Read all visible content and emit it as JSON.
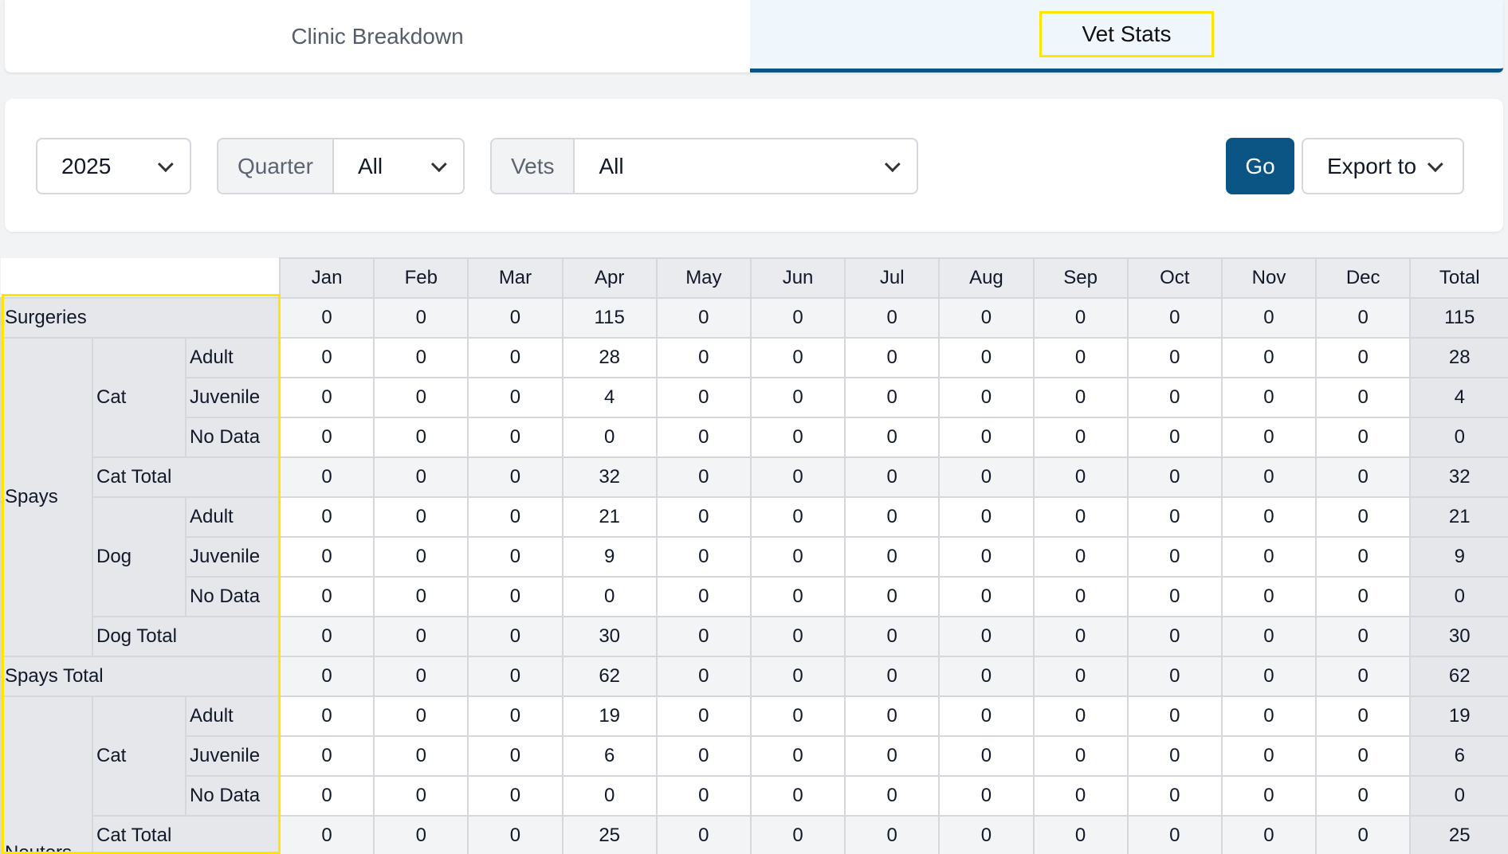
{
  "tabs": [
    {
      "label": "Clinic Breakdown",
      "active": false
    },
    {
      "label": "Vet Stats",
      "active": true
    }
  ],
  "filters": {
    "year": "2025",
    "quarter_label": "Quarter",
    "quarter_value": "All",
    "vets_label": "Vets",
    "vets_value": "All",
    "go_label": "Go",
    "export_label": "Export to"
  },
  "colors": {
    "accent": "#0b5585",
    "highlight": "#ffe600"
  },
  "table": {
    "columns": [
      "Jan",
      "Feb",
      "Mar",
      "Apr",
      "May",
      "Jun",
      "Jul",
      "Aug",
      "Sep",
      "Oct",
      "Nov",
      "Dec",
      "Total"
    ],
    "groups": {
      "surgeries": "Surgeries",
      "spays": "Spays",
      "spays_total": "Spays Total",
      "neuters": "Neuters"
    },
    "rows": [
      {
        "key": "surgeries",
        "l1": "Surgeries",
        "values": [
          0,
          0,
          0,
          115,
          0,
          0,
          0,
          0,
          0,
          0,
          0,
          0,
          115
        ]
      },
      {
        "l1": "Spays",
        "l2": "Cat",
        "l3": "Adult",
        "values": [
          0,
          0,
          0,
          28,
          0,
          0,
          0,
          0,
          0,
          0,
          0,
          0,
          28
        ]
      },
      {
        "l3": "Juvenile",
        "values": [
          0,
          0,
          0,
          4,
          0,
          0,
          0,
          0,
          0,
          0,
          0,
          0,
          4
        ]
      },
      {
        "l3": "No Data",
        "values": [
          0,
          0,
          0,
          0,
          0,
          0,
          0,
          0,
          0,
          0,
          0,
          0,
          0
        ]
      },
      {
        "l2": "Cat Total",
        "subtotal": true,
        "values": [
          0,
          0,
          0,
          32,
          0,
          0,
          0,
          0,
          0,
          0,
          0,
          0,
          32
        ]
      },
      {
        "l2": "Dog",
        "l3": "Adult",
        "values": [
          0,
          0,
          0,
          21,
          0,
          0,
          0,
          0,
          0,
          0,
          0,
          0,
          21
        ]
      },
      {
        "l3": "Juvenile",
        "values": [
          0,
          0,
          0,
          9,
          0,
          0,
          0,
          0,
          0,
          0,
          0,
          0,
          9
        ]
      },
      {
        "l3": "No Data",
        "values": [
          0,
          0,
          0,
          0,
          0,
          0,
          0,
          0,
          0,
          0,
          0,
          0,
          0
        ]
      },
      {
        "l2": "Dog Total",
        "subtotal": true,
        "values": [
          0,
          0,
          0,
          30,
          0,
          0,
          0,
          0,
          0,
          0,
          0,
          0,
          30
        ]
      },
      {
        "l1": "Spays Total",
        "subtotal": true,
        "values": [
          0,
          0,
          0,
          62,
          0,
          0,
          0,
          0,
          0,
          0,
          0,
          0,
          62
        ]
      },
      {
        "l1": "Neuters",
        "l2": "Cat",
        "l3": "Adult",
        "values": [
          0,
          0,
          0,
          19,
          0,
          0,
          0,
          0,
          0,
          0,
          0,
          0,
          19
        ]
      },
      {
        "l3": "Juvenile",
        "values": [
          0,
          0,
          0,
          6,
          0,
          0,
          0,
          0,
          0,
          0,
          0,
          0,
          6
        ]
      },
      {
        "l3": "No Data",
        "values": [
          0,
          0,
          0,
          0,
          0,
          0,
          0,
          0,
          0,
          0,
          0,
          0,
          0
        ]
      },
      {
        "l2": "Cat Total",
        "subtotal": true,
        "values": [
          0,
          0,
          0,
          25,
          0,
          0,
          0,
          0,
          0,
          0,
          0,
          0,
          25
        ]
      }
    ]
  }
}
